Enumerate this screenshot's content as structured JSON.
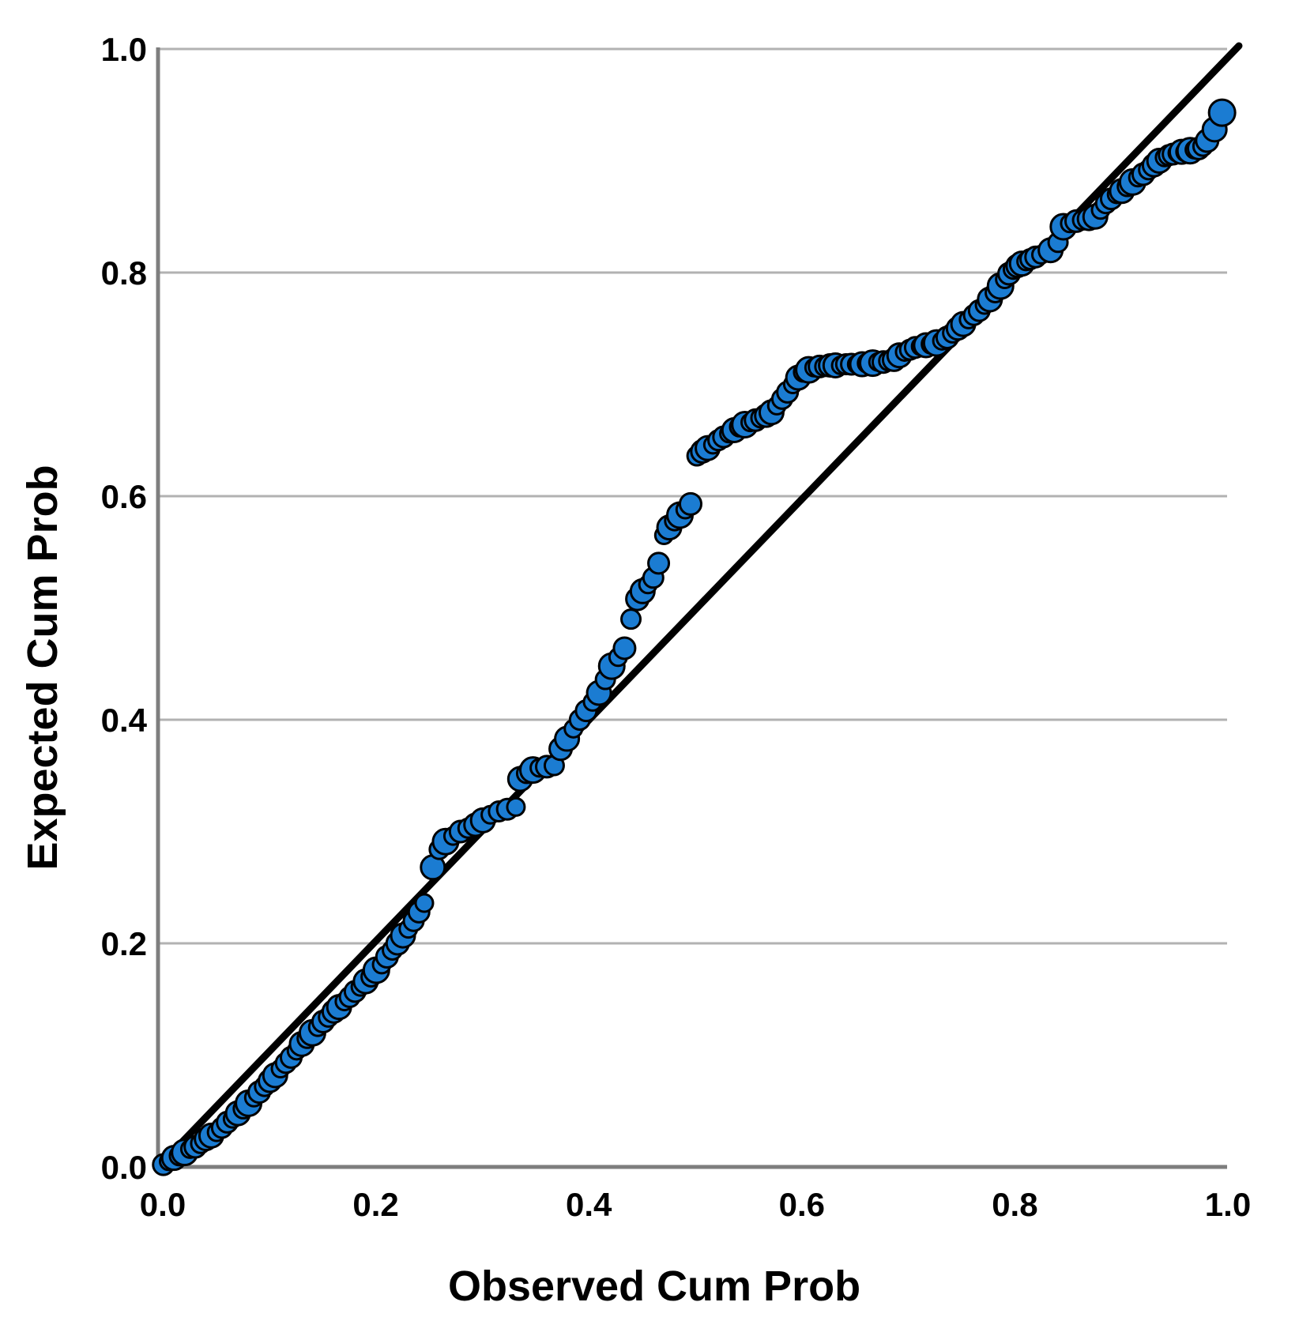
{
  "chart_data": {
    "type": "scatter",
    "title": "",
    "xlabel": "Observed Cum Prob",
    "ylabel": "Expected Cum Prob",
    "xlim": [
      0.0,
      1.0
    ],
    "ylim": [
      0.0,
      1.0
    ],
    "x_ticks": [
      "0.0",
      "0.2",
      "0.4",
      "0.6",
      "0.8",
      "1.0"
    ],
    "y_ticks": [
      "0.0",
      "0.2",
      "0.4",
      "0.6",
      "0.8",
      "1.0"
    ],
    "grid": true,
    "legend": false,
    "reference_line": {
      "from": [
        0.0,
        0.0
      ],
      "to": [
        1.0,
        1.0
      ],
      "color": "#000000"
    },
    "colors": {
      "point_fill": "#1b7cd2",
      "point_stroke": "#000000",
      "gridline": "#b2b2b2",
      "axis": "#7e7e7e",
      "text": "#000000",
      "background": "#ffffff"
    },
    "points": [
      [
        0.005,
        0.002
      ],
      [
        0.01,
        0.005
      ],
      [
        0.015,
        0.008
      ],
      [
        0.02,
        0.01
      ],
      [
        0.025,
        0.013
      ],
      [
        0.03,
        0.016
      ],
      [
        0.035,
        0.018
      ],
      [
        0.04,
        0.021
      ],
      [
        0.045,
        0.025
      ],
      [
        0.05,
        0.028
      ],
      [
        0.055,
        0.031
      ],
      [
        0.06,
        0.035
      ],
      [
        0.065,
        0.04
      ],
      [
        0.07,
        0.043
      ],
      [
        0.075,
        0.048
      ],
      [
        0.08,
        0.052
      ],
      [
        0.085,
        0.057
      ],
      [
        0.09,
        0.062
      ],
      [
        0.095,
        0.067
      ],
      [
        0.1,
        0.072
      ],
      [
        0.105,
        0.077
      ],
      [
        0.11,
        0.082
      ],
      [
        0.115,
        0.088
      ],
      [
        0.12,
        0.093
      ],
      [
        0.125,
        0.098
      ],
      [
        0.13,
        0.104
      ],
      [
        0.135,
        0.11
      ],
      [
        0.14,
        0.115
      ],
      [
        0.145,
        0.12
      ],
      [
        0.15,
        0.125
      ],
      [
        0.155,
        0.13
      ],
      [
        0.16,
        0.134
      ],
      [
        0.165,
        0.139
      ],
      [
        0.17,
        0.143
      ],
      [
        0.175,
        0.148
      ],
      [
        0.18,
        0.152
      ],
      [
        0.185,
        0.157
      ],
      [
        0.19,
        0.161
      ],
      [
        0.195,
        0.166
      ],
      [
        0.2,
        0.17
      ],
      [
        0.205,
        0.176
      ],
      [
        0.21,
        0.181
      ],
      [
        0.215,
        0.188
      ],
      [
        0.22,
        0.194
      ],
      [
        0.225,
        0.2
      ],
      [
        0.23,
        0.207
      ],
      [
        0.235,
        0.213
      ],
      [
        0.24,
        0.22
      ],
      [
        0.245,
        0.228
      ],
      [
        0.25,
        0.236
      ],
      [
        0.258,
        0.268
      ],
      [
        0.264,
        0.284
      ],
      [
        0.27,
        0.291
      ],
      [
        0.277,
        0.296
      ],
      [
        0.284,
        0.3
      ],
      [
        0.291,
        0.303
      ],
      [
        0.298,
        0.306
      ],
      [
        0.305,
        0.31
      ],
      [
        0.312,
        0.315
      ],
      [
        0.32,
        0.318
      ],
      [
        0.328,
        0.32
      ],
      [
        0.336,
        0.322
      ],
      [
        0.34,
        0.347
      ],
      [
        0.346,
        0.352
      ],
      [
        0.352,
        0.355
      ],
      [
        0.358,
        0.357
      ],
      [
        0.365,
        0.358
      ],
      [
        0.372,
        0.359
      ],
      [
        0.378,
        0.374
      ],
      [
        0.384,
        0.383
      ],
      [
        0.39,
        0.392
      ],
      [
        0.396,
        0.4
      ],
      [
        0.402,
        0.408
      ],
      [
        0.408,
        0.416
      ],
      [
        0.414,
        0.424
      ],
      [
        0.42,
        0.436
      ],
      [
        0.426,
        0.448
      ],
      [
        0.432,
        0.456
      ],
      [
        0.438,
        0.464
      ],
      [
        0.444,
        0.49
      ],
      [
        0.45,
        0.508
      ],
      [
        0.455,
        0.515
      ],
      [
        0.46,
        0.521
      ],
      [
        0.465,
        0.527
      ],
      [
        0.47,
        0.54
      ],
      [
        0.475,
        0.565
      ],
      [
        0.48,
        0.572
      ],
      [
        0.485,
        0.578
      ],
      [
        0.49,
        0.583
      ],
      [
        0.495,
        0.588
      ],
      [
        0.5,
        0.593
      ],
      [
        0.506,
        0.636
      ],
      [
        0.511,
        0.64
      ],
      [
        0.516,
        0.643
      ],
      [
        0.521,
        0.646
      ],
      [
        0.526,
        0.65
      ],
      [
        0.531,
        0.653
      ],
      [
        0.536,
        0.656
      ],
      [
        0.541,
        0.659
      ],
      [
        0.546,
        0.662
      ],
      [
        0.551,
        0.664
      ],
      [
        0.556,
        0.666
      ],
      [
        0.561,
        0.668
      ],
      [
        0.566,
        0.67
      ],
      [
        0.571,
        0.672
      ],
      [
        0.576,
        0.675
      ],
      [
        0.581,
        0.681
      ],
      [
        0.586,
        0.687
      ],
      [
        0.591,
        0.693
      ],
      [
        0.596,
        0.7
      ],
      [
        0.601,
        0.706
      ],
      [
        0.606,
        0.711
      ],
      [
        0.611,
        0.713
      ],
      [
        0.616,
        0.715
      ],
      [
        0.621,
        0.716
      ],
      [
        0.626,
        0.716
      ],
      [
        0.631,
        0.717
      ],
      [
        0.636,
        0.717
      ],
      [
        0.641,
        0.717
      ],
      [
        0.646,
        0.718
      ],
      [
        0.651,
        0.718
      ],
      [
        0.656,
        0.718
      ],
      [
        0.661,
        0.718
      ],
      [
        0.666,
        0.719
      ],
      [
        0.671,
        0.719
      ],
      [
        0.676,
        0.72
      ],
      [
        0.681,
        0.72
      ],
      [
        0.686,
        0.721
      ],
      [
        0.691,
        0.722
      ],
      [
        0.696,
        0.726
      ],
      [
        0.701,
        0.729
      ],
      [
        0.706,
        0.731
      ],
      [
        0.711,
        0.733
      ],
      [
        0.716,
        0.734
      ],
      [
        0.721,
        0.735
      ],
      [
        0.726,
        0.736
      ],
      [
        0.731,
        0.737
      ],
      [
        0.736,
        0.739
      ],
      [
        0.741,
        0.742
      ],
      [
        0.746,
        0.746
      ],
      [
        0.751,
        0.75
      ],
      [
        0.756,
        0.754
      ],
      [
        0.761,
        0.758
      ],
      [
        0.766,
        0.762
      ],
      [
        0.771,
        0.766
      ],
      [
        0.776,
        0.771
      ],
      [
        0.781,
        0.776
      ],
      [
        0.786,
        0.782
      ],
      [
        0.791,
        0.788
      ],
      [
        0.795,
        0.794
      ],
      [
        0.799,
        0.799
      ],
      [
        0.803,
        0.803
      ],
      [
        0.807,
        0.806
      ],
      [
        0.811,
        0.808
      ],
      [
        0.815,
        0.81
      ],
      [
        0.819,
        0.812
      ],
      [
        0.824,
        0.814
      ],
      [
        0.829,
        0.816
      ],
      [
        0.838,
        0.82
      ],
      [
        0.845,
        0.827
      ],
      [
        0.85,
        0.841
      ],
      [
        0.856,
        0.844
      ],
      [
        0.862,
        0.846
      ],
      [
        0.868,
        0.847
      ],
      [
        0.874,
        0.848
      ],
      [
        0.88,
        0.85
      ],
      [
        0.885,
        0.856
      ],
      [
        0.89,
        0.862
      ],
      [
        0.895,
        0.866
      ],
      [
        0.9,
        0.87
      ],
      [
        0.905,
        0.873
      ],
      [
        0.91,
        0.877
      ],
      [
        0.915,
        0.881
      ],
      [
        0.92,
        0.885
      ],
      [
        0.925,
        0.888
      ],
      [
        0.93,
        0.892
      ],
      [
        0.935,
        0.896
      ],
      [
        0.94,
        0.9
      ],
      [
        0.945,
        0.903
      ],
      [
        0.949,
        0.905
      ],
      [
        0.953,
        0.906
      ],
      [
        0.957,
        0.907
      ],
      [
        0.961,
        0.908
      ],
      [
        0.965,
        0.908
      ],
      [
        0.969,
        0.909
      ],
      [
        0.973,
        0.91
      ],
      [
        0.977,
        0.911
      ],
      [
        0.981,
        0.913
      ],
      [
        0.985,
        0.918
      ],
      [
        0.992,
        0.928
      ],
      [
        0.999,
        0.943
      ]
    ]
  }
}
